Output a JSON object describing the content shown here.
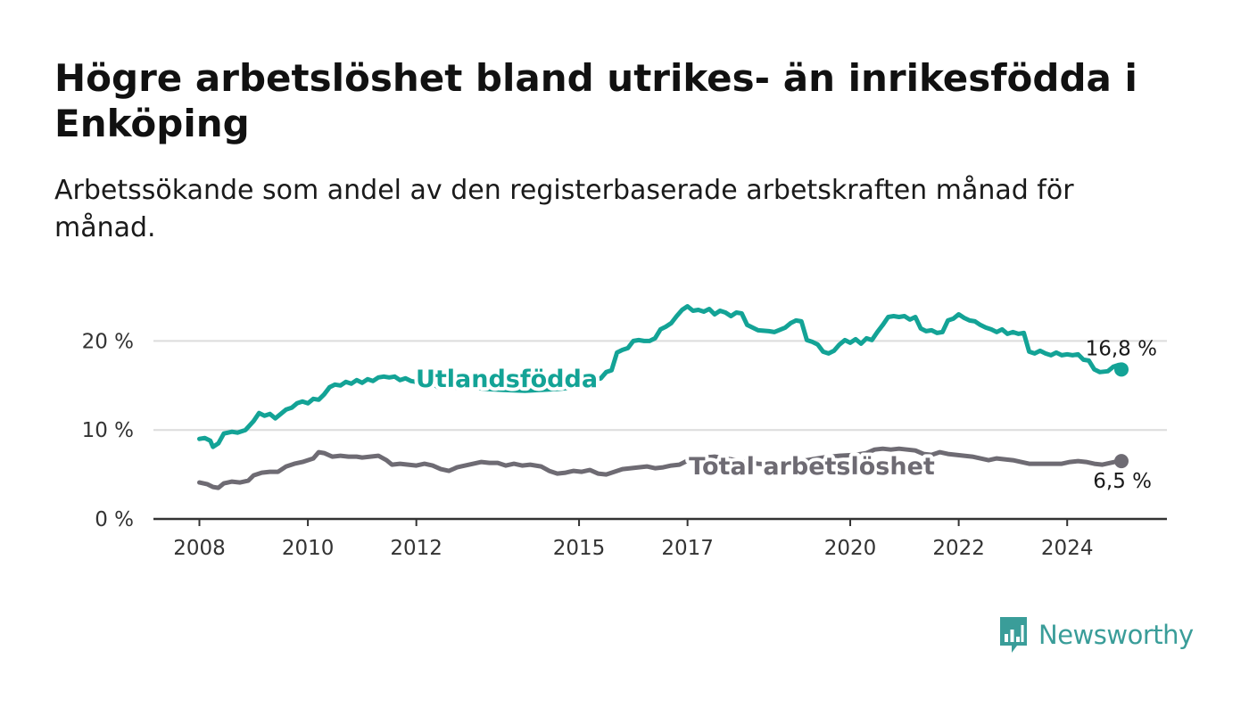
{
  "title": "Högre arbetslöshet bland utrikes- än inrikesfödda i Enköping",
  "subtitle": "Arbetssökande som andel av den registerbaserade arbetskraften månad för månad.",
  "brand": {
    "name": "Newsworthy",
    "color": "#3a9d99",
    "icon": "bar-chart-speech-bubble-icon"
  },
  "chart_data": {
    "type": "line",
    "ylim": [
      0,
      25
    ],
    "xlim": [
      2008,
      2025
    ],
    "grid": true,
    "y_ticks": [
      {
        "value": 0,
        "label": "0 %"
      },
      {
        "value": 10,
        "label": "10 %"
      },
      {
        "value": 20,
        "label": "20 %"
      }
    ],
    "x_ticks": [
      {
        "value": 2008,
        "label": "2008"
      },
      {
        "value": 2010,
        "label": "2010"
      },
      {
        "value": 2012,
        "label": "2012"
      },
      {
        "value": 2015,
        "label": "2015"
      },
      {
        "value": 2017,
        "label": "2017"
      },
      {
        "value": 2020,
        "label": "2020"
      },
      {
        "value": 2022,
        "label": "2022"
      },
      {
        "value": 2024,
        "label": "2024"
      }
    ],
    "series": [
      {
        "name": "Utlandsfödda",
        "color": "#13a396",
        "end_label": "16,8 %",
        "points": [
          [
            2008.0,
            9.0
          ],
          [
            2008.1,
            9.1
          ],
          [
            2008.2,
            8.8
          ],
          [
            2008.25,
            8.1
          ],
          [
            2008.35,
            8.5
          ],
          [
            2008.45,
            9.6
          ],
          [
            2008.6,
            9.8
          ],
          [
            2008.7,
            9.7
          ],
          [
            2008.85,
            10.0
          ],
          [
            2009.0,
            11.0
          ],
          [
            2009.1,
            11.9
          ],
          [
            2009.2,
            11.6
          ],
          [
            2009.3,
            11.8
          ],
          [
            2009.4,
            11.3
          ],
          [
            2009.5,
            11.8
          ],
          [
            2009.6,
            12.3
          ],
          [
            2009.7,
            12.5
          ],
          [
            2009.8,
            13.0
          ],
          [
            2009.9,
            13.2
          ],
          [
            2010.0,
            13.0
          ],
          [
            2010.1,
            13.5
          ],
          [
            2010.2,
            13.4
          ],
          [
            2010.3,
            14.0
          ],
          [
            2010.4,
            14.8
          ],
          [
            2010.5,
            15.1
          ],
          [
            2010.6,
            15.0
          ],
          [
            2010.7,
            15.4
          ],
          [
            2010.8,
            15.2
          ],
          [
            2010.9,
            15.6
          ],
          [
            2011.0,
            15.3
          ],
          [
            2011.1,
            15.7
          ],
          [
            2011.2,
            15.5
          ],
          [
            2011.3,
            15.9
          ],
          [
            2011.4,
            16.0
          ],
          [
            2011.5,
            15.9
          ],
          [
            2011.6,
            16.0
          ],
          [
            2011.7,
            15.6
          ],
          [
            2011.8,
            15.8
          ],
          [
            2011.9,
            15.5
          ],
          [
            2012.0,
            15.4
          ],
          [
            2012.1,
            15.4
          ],
          [
            2012.2,
            15.1
          ],
          [
            2012.3,
            15.2
          ],
          [
            2012.4,
            14.8
          ],
          [
            2012.5,
            15.0
          ],
          [
            2012.6,
            14.9
          ],
          [
            2012.8,
            14.7
          ],
          [
            2013.0,
            14.8
          ],
          [
            2013.3,
            14.6
          ],
          [
            2013.6,
            14.5
          ],
          [
            2014.0,
            14.4
          ],
          [
            2014.3,
            14.5
          ],
          [
            2014.6,
            14.6
          ],
          [
            2014.9,
            14.8
          ],
          [
            2015.2,
            15.5
          ],
          [
            2015.4,
            15.8
          ],
          [
            2015.5,
            16.5
          ],
          [
            2015.6,
            16.7
          ],
          [
            2015.7,
            18.7
          ],
          [
            2015.8,
            19.0
          ],
          [
            2015.9,
            19.2
          ],
          [
            2016.0,
            20.0
          ],
          [
            2016.1,
            20.1
          ],
          [
            2016.2,
            20.0
          ],
          [
            2016.3,
            20.0
          ],
          [
            2016.4,
            20.3
          ],
          [
            2016.5,
            21.3
          ],
          [
            2016.6,
            21.6
          ],
          [
            2016.7,
            22.0
          ],
          [
            2016.8,
            22.8
          ],
          [
            2016.9,
            23.5
          ],
          [
            2017.0,
            23.9
          ],
          [
            2017.1,
            23.4
          ],
          [
            2017.2,
            23.5
          ],
          [
            2017.3,
            23.3
          ],
          [
            2017.4,
            23.6
          ],
          [
            2017.5,
            23.0
          ],
          [
            2017.6,
            23.4
          ],
          [
            2017.7,
            23.2
          ],
          [
            2017.8,
            22.8
          ],
          [
            2017.9,
            23.2
          ],
          [
            2018.0,
            23.1
          ],
          [
            2018.1,
            21.8
          ],
          [
            2018.2,
            21.5
          ],
          [
            2018.3,
            21.2
          ],
          [
            2018.5,
            21.1
          ],
          [
            2018.6,
            21.0
          ],
          [
            2018.8,
            21.5
          ],
          [
            2018.9,
            22.0
          ],
          [
            2019.0,
            22.3
          ],
          [
            2019.1,
            22.2
          ],
          [
            2019.2,
            20.1
          ],
          [
            2019.3,
            19.9
          ],
          [
            2019.4,
            19.6
          ],
          [
            2019.5,
            18.8
          ],
          [
            2019.6,
            18.6
          ],
          [
            2019.7,
            18.9
          ],
          [
            2019.8,
            19.6
          ],
          [
            2019.9,
            20.1
          ],
          [
            2020.0,
            19.8
          ],
          [
            2020.1,
            20.2
          ],
          [
            2020.2,
            19.7
          ],
          [
            2020.3,
            20.3
          ],
          [
            2020.4,
            20.1
          ],
          [
            2020.5,
            21.0
          ],
          [
            2020.6,
            21.8
          ],
          [
            2020.7,
            22.7
          ],
          [
            2020.8,
            22.8
          ],
          [
            2020.9,
            22.7
          ],
          [
            2021.0,
            22.8
          ],
          [
            2021.1,
            22.4
          ],
          [
            2021.2,
            22.7
          ],
          [
            2021.3,
            21.4
          ],
          [
            2021.4,
            21.1
          ],
          [
            2021.5,
            21.2
          ],
          [
            2021.6,
            20.9
          ],
          [
            2021.7,
            21.0
          ],
          [
            2021.8,
            22.3
          ],
          [
            2021.9,
            22.5
          ],
          [
            2022.0,
            23.0
          ],
          [
            2022.1,
            22.6
          ],
          [
            2022.2,
            22.3
          ],
          [
            2022.3,
            22.2
          ],
          [
            2022.4,
            21.8
          ],
          [
            2022.5,
            21.5
          ],
          [
            2022.6,
            21.3
          ],
          [
            2022.7,
            21.0
          ],
          [
            2022.8,
            21.3
          ],
          [
            2022.9,
            20.8
          ],
          [
            2023.0,
            21.0
          ],
          [
            2023.1,
            20.8
          ],
          [
            2023.2,
            20.9
          ],
          [
            2023.3,
            18.8
          ],
          [
            2023.4,
            18.6
          ],
          [
            2023.5,
            18.9
          ],
          [
            2023.6,
            18.6
          ],
          [
            2023.7,
            18.4
          ],
          [
            2023.8,
            18.7
          ],
          [
            2023.9,
            18.4
          ],
          [
            2024.0,
            18.5
          ],
          [
            2024.1,
            18.4
          ],
          [
            2024.2,
            18.5
          ],
          [
            2024.3,
            17.9
          ],
          [
            2024.4,
            17.8
          ],
          [
            2024.5,
            16.8
          ],
          [
            2024.6,
            16.5
          ],
          [
            2024.75,
            16.6
          ],
          [
            2024.85,
            17.1
          ],
          [
            2024.95,
            17.3
          ],
          [
            2025.0,
            16.8
          ]
        ]
      },
      {
        "name": "Total arbetslöshet",
        "color": "#6e6b73",
        "end_label": "6,5 %",
        "points": [
          [
            2008.0,
            4.1
          ],
          [
            2008.15,
            3.9
          ],
          [
            2008.25,
            3.6
          ],
          [
            2008.35,
            3.5
          ],
          [
            2008.45,
            4.0
          ],
          [
            2008.6,
            4.2
          ],
          [
            2008.75,
            4.1
          ],
          [
            2008.9,
            4.3
          ],
          [
            2009.0,
            4.9
          ],
          [
            2009.15,
            5.2
          ],
          [
            2009.3,
            5.3
          ],
          [
            2009.45,
            5.3
          ],
          [
            2009.6,
            5.9
          ],
          [
            2009.75,
            6.2
          ],
          [
            2009.9,
            6.4
          ],
          [
            2010.0,
            6.6
          ],
          [
            2010.1,
            6.8
          ],
          [
            2010.2,
            7.5
          ],
          [
            2010.3,
            7.4
          ],
          [
            2010.45,
            7.0
          ],
          [
            2010.6,
            7.1
          ],
          [
            2010.75,
            7.0
          ],
          [
            2010.9,
            7.0
          ],
          [
            2011.0,
            6.9
          ],
          [
            2011.15,
            7.0
          ],
          [
            2011.3,
            7.1
          ],
          [
            2011.45,
            6.6
          ],
          [
            2011.55,
            6.1
          ],
          [
            2011.7,
            6.2
          ],
          [
            2011.85,
            6.1
          ],
          [
            2012.0,
            6.0
          ],
          [
            2012.15,
            6.2
          ],
          [
            2012.3,
            6.0
          ],
          [
            2012.45,
            5.6
          ],
          [
            2012.6,
            5.4
          ],
          [
            2012.75,
            5.8
          ],
          [
            2012.9,
            6.0
          ],
          [
            2013.05,
            6.2
          ],
          [
            2013.2,
            6.4
          ],
          [
            2013.35,
            6.3
          ],
          [
            2013.5,
            6.3
          ],
          [
            2013.65,
            6.0
          ],
          [
            2013.8,
            6.2
          ],
          [
            2013.95,
            6.0
          ],
          [
            2014.1,
            6.1
          ],
          [
            2014.3,
            5.9
          ],
          [
            2014.45,
            5.4
          ],
          [
            2014.6,
            5.1
          ],
          [
            2014.75,
            5.2
          ],
          [
            2014.9,
            5.4
          ],
          [
            2015.05,
            5.3
          ],
          [
            2015.2,
            5.5
          ],
          [
            2015.35,
            5.1
          ],
          [
            2015.5,
            5.0
          ],
          [
            2015.65,
            5.3
          ],
          [
            2015.8,
            5.6
          ],
          [
            2015.95,
            5.7
          ],
          [
            2016.1,
            5.8
          ],
          [
            2016.25,
            5.9
          ],
          [
            2016.4,
            5.7
          ],
          [
            2016.55,
            5.8
          ],
          [
            2016.7,
            6.0
          ],
          [
            2016.85,
            6.1
          ],
          [
            2016.95,
            6.4
          ],
          [
            2017.1,
            6.8
          ],
          [
            2017.3,
            6.9
          ],
          [
            2017.5,
            7.0
          ],
          [
            2017.7,
            6.8
          ],
          [
            2017.9,
            6.6
          ],
          [
            2018.1,
            6.4
          ],
          [
            2018.3,
            6.2
          ],
          [
            2018.6,
            6.1
          ],
          [
            2018.9,
            6.3
          ],
          [
            2019.2,
            6.6
          ],
          [
            2019.5,
            6.9
          ],
          [
            2019.8,
            7.1
          ],
          [
            2020.1,
            7.2
          ],
          [
            2020.3,
            7.4
          ],
          [
            2020.45,
            7.8
          ],
          [
            2020.6,
            7.9
          ],
          [
            2020.75,
            7.8
          ],
          [
            2020.9,
            7.9
          ],
          [
            2021.05,
            7.8
          ],
          [
            2021.2,
            7.7
          ],
          [
            2021.35,
            7.3
          ],
          [
            2021.5,
            7.2
          ],
          [
            2021.65,
            7.5
          ],
          [
            2021.8,
            7.3
          ],
          [
            2021.95,
            7.2
          ],
          [
            2022.1,
            7.1
          ],
          [
            2022.25,
            7.0
          ],
          [
            2022.4,
            6.8
          ],
          [
            2022.55,
            6.6
          ],
          [
            2022.7,
            6.8
          ],
          [
            2022.85,
            6.7
          ],
          [
            2023.0,
            6.6
          ],
          [
            2023.15,
            6.4
          ],
          [
            2023.3,
            6.2
          ],
          [
            2023.5,
            6.2
          ],
          [
            2023.7,
            6.2
          ],
          [
            2023.9,
            6.2
          ],
          [
            2024.05,
            6.4
          ],
          [
            2024.2,
            6.5
          ],
          [
            2024.35,
            6.4
          ],
          [
            2024.5,
            6.2
          ],
          [
            2024.65,
            6.1
          ],
          [
            2024.8,
            6.3
          ],
          [
            2024.95,
            6.5
          ],
          [
            2025.0,
            6.5
          ]
        ]
      }
    ]
  }
}
